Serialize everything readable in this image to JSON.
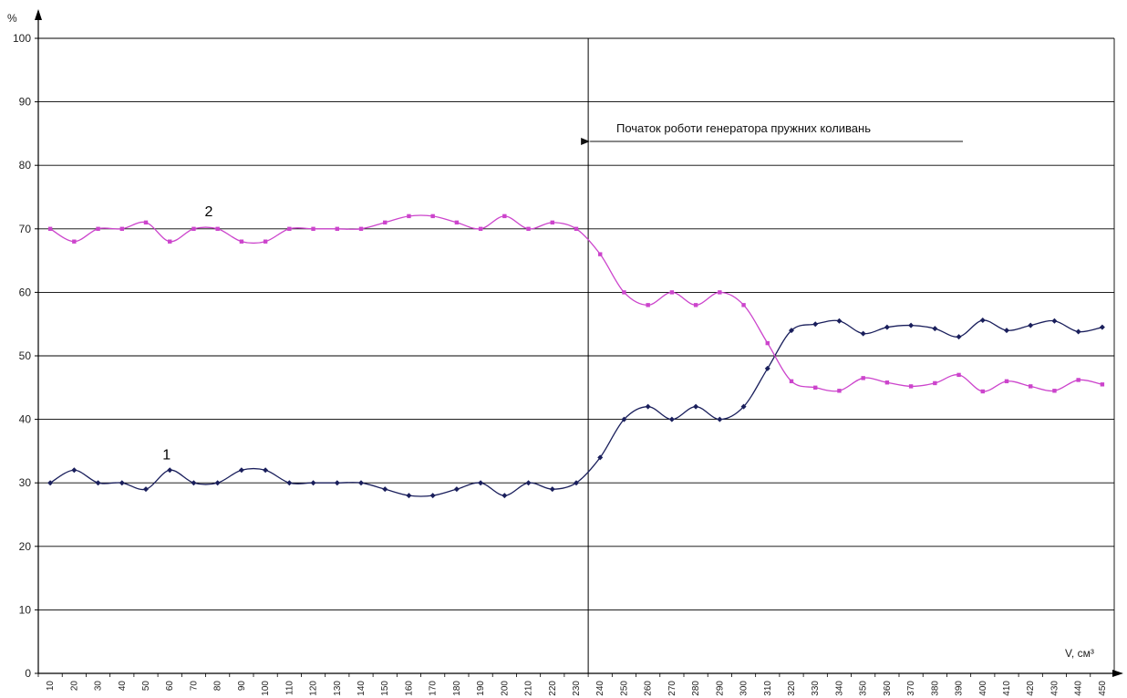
{
  "chart_data": {
    "type": "line",
    "x": [
      10,
      20,
      30,
      40,
      50,
      60,
      70,
      80,
      90,
      100,
      110,
      120,
      130,
      140,
      150,
      160,
      170,
      180,
      190,
      200,
      210,
      220,
      230,
      240,
      250,
      260,
      270,
      280,
      290,
      300,
      310,
      320,
      330,
      340,
      350,
      360,
      370,
      380,
      390,
      400,
      410,
      420,
      430,
      440,
      450
    ],
    "series": [
      {
        "name": "1",
        "color": "#1a1f5c",
        "marker": "diamond",
        "values": [
          30,
          32,
          30,
          30,
          29,
          32,
          30,
          30,
          32,
          32,
          30,
          30,
          30,
          30,
          29,
          28,
          28,
          29,
          30,
          28,
          30,
          29,
          30,
          34,
          40,
          42,
          40,
          42,
          40,
          42,
          48,
          54,
          55,
          55.5,
          53.5,
          54.5,
          54.8,
          54.3,
          53,
          55.6,
          54,
          54.8,
          55.5,
          53.8,
          54.5
        ]
      },
      {
        "name": "2",
        "color": "#cc44cc",
        "marker": "square",
        "values": [
          70,
          68,
          70,
          70,
          71,
          68,
          70,
          70,
          68,
          68,
          70,
          70,
          70,
          70,
          71,
          72,
          72,
          71,
          70,
          72,
          70,
          71,
          70,
          66,
          60,
          58,
          60,
          58,
          60,
          58,
          52,
          46,
          45,
          44.5,
          46.5,
          45.8,
          45.2,
          45.7,
          47,
          44.4,
          46,
          45.2,
          44.5,
          46.2,
          45.5
        ]
      }
    ],
    "ylim": [
      0,
      100
    ],
    "y_ticks": [
      0,
      10,
      20,
      30,
      40,
      50,
      60,
      70,
      80,
      90,
      100
    ],
    "ylabel": "%",
    "xlabel": "V, см³",
    "grid": "horizontal",
    "vertical_marker_x": 235,
    "annotation": "Початок роботи генератора пружних коливань",
    "curve_labels": [
      {
        "text": "1",
        "series": "1"
      },
      {
        "text": "2",
        "series": "2"
      }
    ]
  }
}
